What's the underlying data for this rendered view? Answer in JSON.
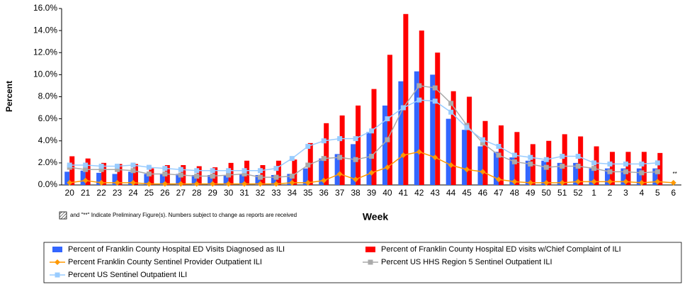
{
  "chart_data": {
    "type": "bar",
    "y_label": "Percent",
    "x_label": "Week",
    "note": "and \"**\" Indicate Preliminary Figure(s).  Numbers subject to change as reports are received",
    "annotation": "**",
    "categories": [
      "20",
      "21",
      "22",
      "23",
      "24",
      "25",
      "26",
      "27",
      "28",
      "29",
      "30",
      "31",
      "32",
      "33",
      "34",
      "35",
      "36",
      "37",
      "38",
      "39",
      "40",
      "41",
      "42",
      "43",
      "44",
      "45",
      "46",
      "47",
      "48",
      "49",
      "50",
      "51",
      "52",
      "1",
      "2",
      "3",
      "4",
      "5",
      "6"
    ],
    "ylim": [
      0,
      16
    ],
    "yticks": [
      {
        "value": 0,
        "label": "0.0%"
      },
      {
        "value": 2,
        "label": "2.0%"
      },
      {
        "value": 4,
        "label": "4.0%"
      },
      {
        "value": 6,
        "label": "6.0%"
      },
      {
        "value": 8,
        "label": "8.0%"
      },
      {
        "value": 10,
        "label": "10.0%"
      },
      {
        "value": 12,
        "label": "12.0%"
      },
      {
        "value": 14,
        "label": "14.0%"
      },
      {
        "value": 16,
        "label": "16.0%"
      }
    ],
    "grid": false,
    "series": [
      {
        "name": "Percent of Franklin County Hospital ED Visits Diagnosed as ILI",
        "type": "bar",
        "color": "#3366ff",
        "values": [
          1.2,
          1.3,
          1.1,
          1.0,
          1.2,
          1.0,
          1.0,
          1.0,
          0.9,
          0.9,
          0.9,
          1.0,
          0.9,
          0.9,
          1.0,
          1.5,
          2.4,
          2.8,
          3.7,
          4.8,
          7.2,
          9.4,
          10.3,
          10.0,
          6.0,
          5.0,
          3.5,
          3.0,
          2.5,
          2.2,
          2.2,
          2.0,
          2.0,
          1.5,
          1.5,
          1.5,
          1.5,
          1.5,
          null
        ]
      },
      {
        "name": "Percent of Franklin County Hospital ED visits w/Chief Complaint of ILI",
        "type": "bar",
        "color": "#ff0000",
        "values": [
          2.6,
          2.4,
          2.0,
          1.9,
          1.9,
          1.5,
          1.8,
          1.8,
          1.7,
          1.6,
          2.0,
          2.2,
          1.8,
          2.2,
          2.3,
          3.8,
          5.6,
          6.3,
          7.2,
          8.7,
          11.8,
          15.5,
          14.0,
          12.0,
          8.5,
          8.0,
          5.8,
          5.4,
          4.8,
          3.7,
          4.0,
          4.6,
          4.4,
          3.5,
          3.0,
          3.0,
          3.0,
          2.9,
          null
        ]
      },
      {
        "name": "Percent Franklin County Sentinel Provider Outpatient ILI",
        "type": "line",
        "marker": "diamond",
        "color": "#ff9900",
        "values": [
          0.2,
          0.4,
          0.2,
          0.2,
          0.2,
          0.1,
          0.1,
          0.1,
          0.1,
          0.1,
          0.1,
          0.1,
          0.1,
          0.1,
          0.2,
          0.2,
          0.4,
          1.0,
          0.5,
          1.1,
          1.6,
          2.7,
          3.0,
          2.5,
          1.8,
          1.4,
          1.2,
          0.5,
          0.3,
          0.2,
          0.2,
          0.2,
          0.3,
          0.3,
          0.3,
          0.3,
          0.2,
          0.3,
          0.2
        ]
      },
      {
        "name": "Percent US HHS Region 5 Sentinel Outpatient ILI",
        "type": "line",
        "marker": "square",
        "color": "#aaaaaa",
        "values": [
          1.6,
          1.4,
          1.4,
          1.4,
          1.3,
          1.0,
          1.0,
          0.9,
          0.8,
          0.8,
          0.9,
          1.0,
          0.7,
          0.7,
          0.8,
          1.8,
          2.4,
          2.5,
          2.3,
          2.6,
          4.1,
          7.0,
          9.0,
          8.8,
          7.4,
          5.4,
          3.8,
          2.7,
          2.1,
          1.9,
          1.6,
          1.7,
          1.7,
          1.5,
          1.2,
          1.2,
          1.1,
          1.2,
          null
        ]
      },
      {
        "name": "Percent US Sentinel Outpatient ILI",
        "type": "line",
        "marker": "square",
        "color": "#99ccff",
        "values": [
          1.8,
          1.8,
          1.7,
          1.7,
          1.8,
          1.6,
          1.5,
          1.4,
          1.3,
          1.3,
          1.3,
          1.3,
          1.3,
          1.5,
          2.4,
          3.5,
          4.0,
          4.2,
          4.2,
          4.9,
          6.0,
          7.0,
          7.7,
          7.6,
          6.6,
          5.2,
          4.1,
          3.5,
          2.7,
          2.5,
          2.3,
          2.6,
          2.6,
          2.0,
          1.9,
          1.9,
          1.9,
          2.0,
          null
        ]
      }
    ]
  }
}
